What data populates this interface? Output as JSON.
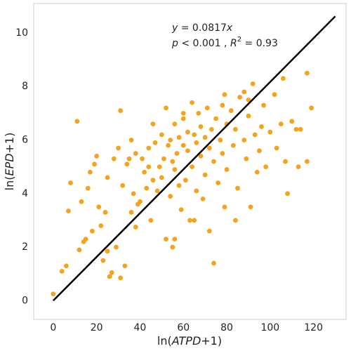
{
  "chart_data": {
    "type": "scatter",
    "x_label": [
      "ln(",
      "ATPD",
      "+1)"
    ],
    "y_label": [
      "ln(",
      "EPD",
      "+1)"
    ],
    "annotations": [
      [
        "y",
        " = 0.0817",
        "x"
      ],
      [
        "p",
        " < 0.001 , ",
        "R",
        "2",
        " = 0.93"
      ]
    ],
    "color": "#F5A31C",
    "fit": {
      "slope": 0.0817,
      "xrange": [
        0,
        130
      ],
      "color": "#000000"
    },
    "xlim": [
      -9,
      135
    ],
    "ylim": [
      -0.7,
      11.1
    ],
    "xticks": [
      0,
      20,
      40,
      60,
      80,
      100,
      120
    ],
    "yticks": [
      0,
      2,
      4,
      6,
      8,
      10
    ],
    "grid": false,
    "x": [
      0,
      4,
      6,
      7,
      8,
      11,
      12,
      13,
      14,
      15,
      16,
      17,
      18,
      19,
      20,
      21,
      22,
      23,
      24,
      25,
      25,
      26,
      27,
      28,
      29,
      30,
      31,
      31,
      32,
      33,
      34,
      35,
      36,
      37,
      38,
      38,
      39,
      40,
      41,
      42,
      43,
      44,
      45,
      46,
      46,
      47,
      48,
      49,
      50,
      50,
      51,
      52,
      52,
      53,
      54,
      54,
      55,
      55,
      56,
      56,
      57,
      58,
      58,
      59,
      60,
      60,
      61,
      62,
      62,
      63,
      64,
      64,
      65,
      66,
      66,
      67,
      68,
      68,
      69,
      70,
      70,
      71,
      72,
      72,
      73,
      74,
      74,
      75,
      76,
      77,
      78,
      78,
      79,
      80,
      80,
      82,
      83,
      84,
      84,
      85,
      86,
      88,
      89,
      90,
      91,
      92,
      93,
      94,
      95,
      96,
      97,
      98,
      100,
      102,
      103,
      105,
      106,
      107,
      108,
      110,
      112,
      113,
      117,
      117,
      119,
      114,
      90,
      88,
      79,
      60,
      56,
      44,
      36,
      65
    ],
    "y": [
      0.25,
      1.1,
      1.3,
      3.35,
      4.4,
      6.7,
      1.9,
      3.7,
      2.2,
      2.3,
      4.2,
      4.8,
      2.6,
      5.1,
      5.4,
      3.5,
      2.8,
      1.5,
      3.3,
      4.6,
      1.85,
      0.9,
      1.05,
      5.3,
      2.0,
      5.7,
      7.1,
      0.85,
      4.3,
      1.3,
      5.1,
      5.3,
      3.3,
      4.0,
      2.75,
      5.5,
      3.6,
      3.7,
      5.3,
      4.8,
      4.2,
      5.7,
      3.0,
      4.5,
      6.6,
      5.9,
      4.1,
      5.0,
      6.2,
      4.6,
      5.3,
      7.2,
      2.3,
      5.8,
      3.9,
      6.0,
      5.2,
      2.0,
      6.6,
      4.9,
      5.5,
      6.1,
      4.3,
      3.4,
      5.8,
      6.8,
      4.5,
      6.3,
      5.6,
      3.0,
      7.4,
      5.0,
      6.2,
      5.9,
      4.1,
      7.0,
      5.4,
      6.5,
      3.8,
      6.1,
      4.7,
      7.2,
      5.7,
      2.6,
      6.4,
      1.4,
      5.2,
      6.8,
      4.4,
      6.0,
      7.3,
      5.5,
      3.5,
      6.6,
      4.9,
      7.1,
      5.8,
      6.4,
      3.0,
      4.2,
      7.6,
      6.0,
      5.3,
      6.9,
      3.5,
      8.1,
      6.2,
      4.8,
      5.6,
      6.5,
      7.3,
      5.0,
      6.3,
      7.7,
      5.7,
      6.6,
      8.3,
      5.2,
      4.0,
      6.7,
      6.4,
      5.0,
      5.2,
      8.5,
      7.2,
      6.4,
      7.5,
      7.8,
      7.7,
      7.0,
      2.3,
      5.0,
      6.0,
      3.0
    ]
  }
}
